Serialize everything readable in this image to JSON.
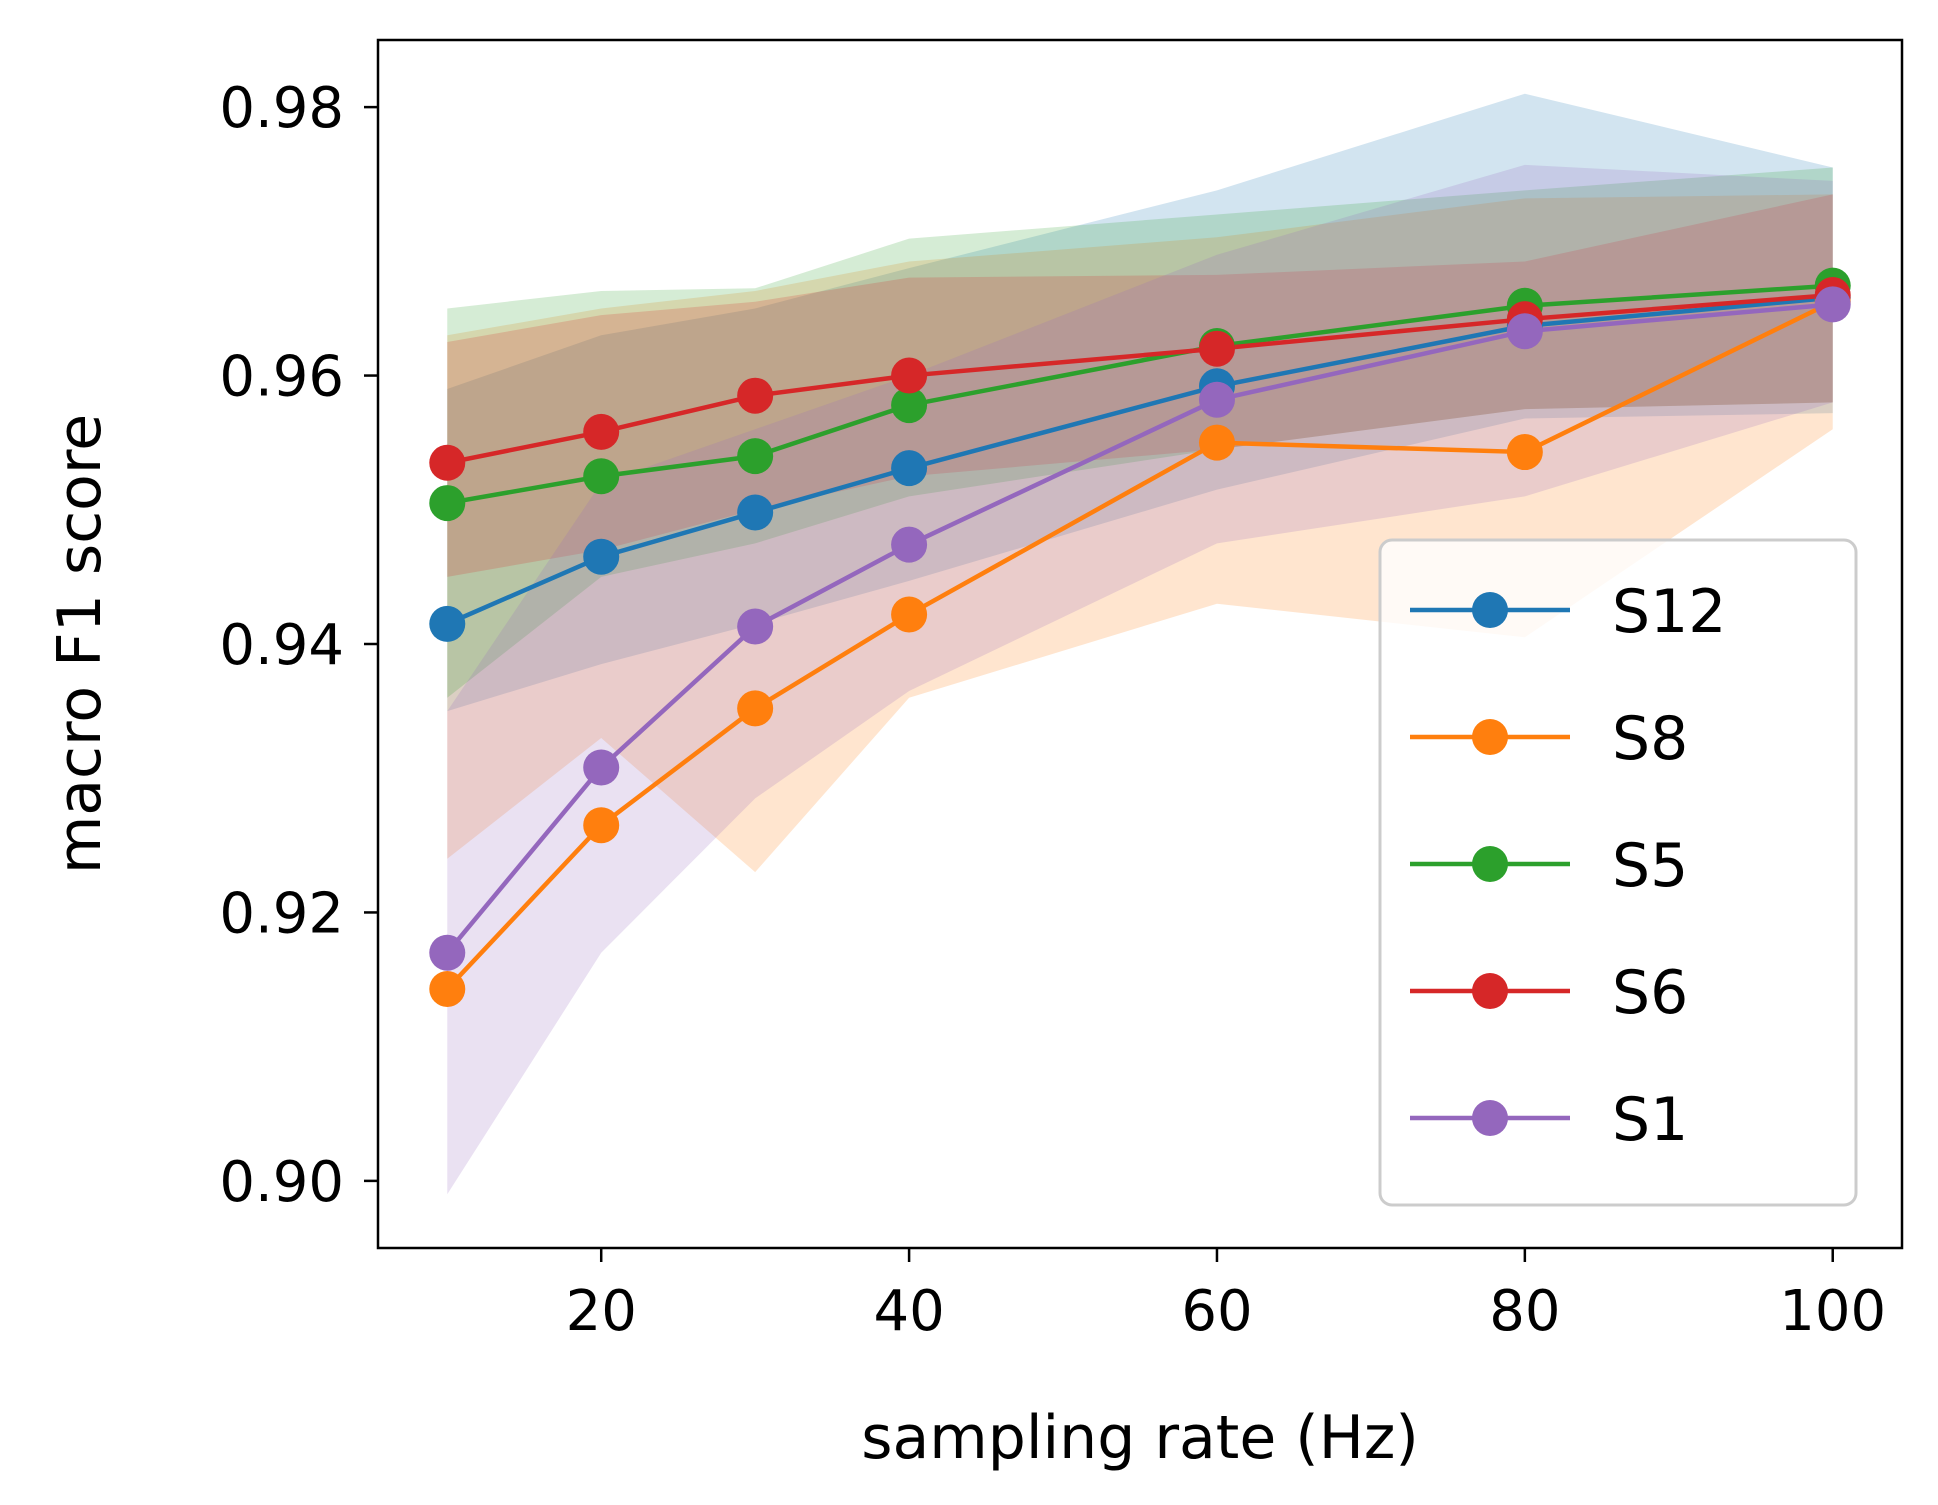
{
  "chart_data": {
    "type": "line",
    "title": "",
    "xlabel": "sampling rate (Hz)",
    "ylabel": "macro F1 score",
    "xlim": [
      5.5,
      104.5
    ],
    "ylim": [
      0.895,
      0.985
    ],
    "x": [
      10,
      20,
      30,
      40,
      60,
      80,
      100
    ],
    "xticks": [
      20,
      40,
      60,
      80,
      100
    ],
    "xtick_labels": [
      "20",
      "40",
      "60",
      "80",
      "100"
    ],
    "yticks": [
      0.9,
      0.92,
      0.94,
      0.96,
      0.98
    ],
    "ytick_labels": [
      "0.90",
      "0.92",
      "0.94",
      "0.96",
      "0.98"
    ],
    "grid": false,
    "legend_position": "lower-right",
    "series": [
      {
        "name": "S12",
        "color": "#1f77b4",
        "values": [
          0.9415,
          0.9465,
          0.9498,
          0.9531,
          0.9592,
          0.9637,
          0.9658
        ],
        "lower": [
          0.935,
          0.9385,
          0.9415,
          0.9447,
          0.9515,
          0.9568,
          0.9572
        ],
        "upper": [
          0.959,
          0.963,
          0.965,
          0.968,
          0.9738,
          0.981,
          0.9755
        ]
      },
      {
        "name": "S8",
        "color": "#ff7f0e",
        "values": [
          0.9143,
          0.9265,
          0.9352,
          0.9422,
          0.955,
          0.9543,
          0.9655
        ],
        "lower": [
          0.924,
          0.933,
          0.923,
          0.936,
          0.943,
          0.9405,
          0.956
        ],
        "upper": [
          0.963,
          0.965,
          0.9663,
          0.9685,
          0.9703,
          0.9732,
          0.9735
        ]
      },
      {
        "name": "S5",
        "color": "#2ca02c",
        "values": [
          0.9505,
          0.9525,
          0.954,
          0.9578,
          0.9622,
          0.9652,
          0.9667
        ],
        "lower": [
          0.936,
          0.945,
          0.9475,
          0.951,
          0.9545,
          0.9575,
          0.958
        ],
        "upper": [
          0.965,
          0.9663,
          0.9665,
          0.9702,
          0.972,
          0.9738,
          0.9755
        ]
      },
      {
        "name": "S6",
        "color": "#d62728",
        "values": [
          0.9535,
          0.9558,
          0.9585,
          0.96,
          0.962,
          0.9642,
          0.966
        ],
        "lower": [
          0.945,
          0.947,
          0.95,
          0.9525,
          0.9545,
          0.9575,
          0.958
        ],
        "upper": [
          0.9625,
          0.9645,
          0.9655,
          0.9673,
          0.9675,
          0.9685,
          0.9735
        ]
      },
      {
        "name": "S1",
        "color": "#9467bd",
        "values": [
          0.917,
          0.9308,
          0.9413,
          0.9474,
          0.9582,
          0.9633,
          0.9653
        ],
        "lower": [
          0.899,
          0.917,
          0.9285,
          0.9365,
          0.9475,
          0.951,
          0.958
        ],
        "upper": [
          0.935,
          0.952,
          0.956,
          0.96,
          0.969,
          0.9757,
          0.9745
        ]
      }
    ]
  }
}
